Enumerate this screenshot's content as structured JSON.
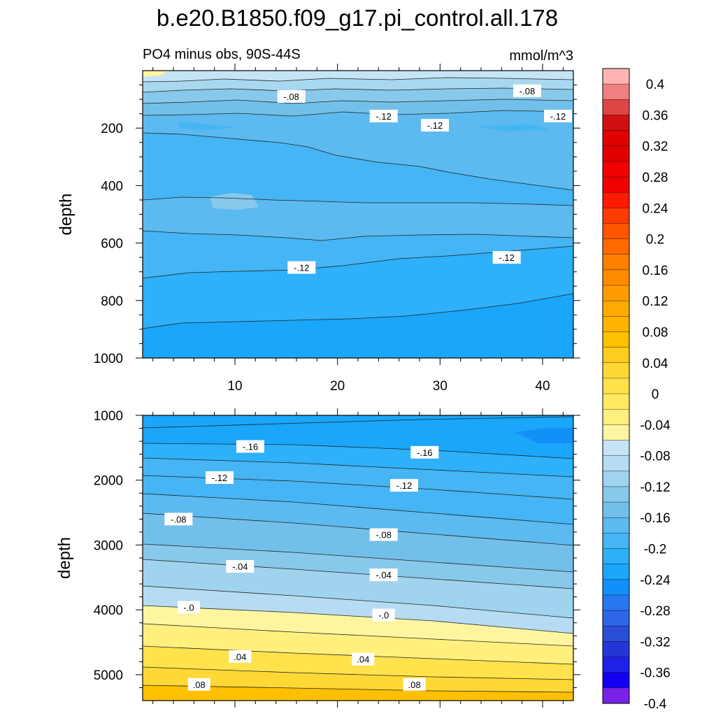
{
  "chart_data": {
    "type": "contour",
    "title": "b.e20.B1850.f09_g17.pi_control.all.178",
    "subtitle_left": "PO4 minus obs, 90S-44S",
    "units": "mmol/m^3",
    "xlim": [
      1,
      43
    ],
    "x_ticks": [
      10,
      20,
      30,
      40
    ],
    "x_tick_labels": [
      "10",
      "20",
      "30",
      "40"
    ],
    "panels": [
      {
        "name": "upper",
        "ylabel": "depth",
        "ylim": [
          0,
          1000
        ],
        "y_ticks": [
          200,
          400,
          600,
          800,
          1000
        ],
        "y_tick_labels": [
          "200",
          "400",
          "600",
          "800",
          "1000"
        ],
        "contour_labels": [
          {
            "text": "-.08",
            "x": 15.5,
            "y": 90
          },
          {
            "text": "-.08",
            "x": 38.5,
            "y": 70
          },
          {
            "text": "-.12",
            "x": 24.5,
            "y": 158
          },
          {
            "text": "-.12",
            "x": 29.5,
            "y": 190
          },
          {
            "text": "-.12",
            "x": 41.5,
            "y": 158
          },
          {
            "text": "-.12",
            "x": 16.5,
            "y": 685
          },
          {
            "text": "-.12",
            "x": 36.5,
            "y": 650
          }
        ]
      },
      {
        "name": "lower",
        "ylabel": "depth",
        "ylim": [
          1000,
          5400
        ],
        "y_ticks": [
          1000,
          2000,
          3000,
          4000,
          5000
        ],
        "y_tick_labels": [
          "1000",
          "2000",
          "3000",
          "4000",
          "5000"
        ],
        "contour_labels": [
          {
            "text": "-.16",
            "x": 11.5,
            "y": 1480
          },
          {
            "text": "-.16",
            "x": 28.5,
            "y": 1570
          },
          {
            "text": "-.12",
            "x": 8.5,
            "y": 1960
          },
          {
            "text": "-.12",
            "x": 26.5,
            "y": 2080
          },
          {
            "text": "-.08",
            "x": 4.5,
            "y": 2600
          },
          {
            "text": "-.08",
            "x": 24.5,
            "y": 2840
          },
          {
            "text": "-.04",
            "x": 10.5,
            "y": 3330
          },
          {
            "text": "-.04",
            "x": 24.5,
            "y": 3460
          },
          {
            "text": "-.0",
            "x": 5.5,
            "y": 3960
          },
          {
            "text": "-.0",
            "x": 24.5,
            "y": 4080
          },
          {
            "text": ".04",
            "x": 10.5,
            "y": 4720
          },
          {
            "text": ".04",
            "x": 22.5,
            "y": 4760
          },
          {
            "text": ".08",
            "x": 6.5,
            "y": 5150
          },
          {
            "text": ".08",
            "x": 27.5,
            "y": 5150
          }
        ]
      }
    ],
    "colorbar": {
      "levels": [
        -0.4,
        -0.38,
        -0.36,
        -0.34,
        -0.32,
        -0.3,
        -0.28,
        -0.26,
        -0.24,
        -0.22,
        -0.2,
        -0.18,
        -0.16,
        -0.14,
        -0.12,
        -0.1,
        -0.08,
        -0.06,
        -0.04,
        -0.02,
        0,
        0.02,
        0.04,
        0.06,
        0.08,
        0.1,
        0.12,
        0.14,
        0.16,
        0.18,
        0.2,
        0.22,
        0.24,
        0.26,
        0.28,
        0.3,
        0.32,
        0.34,
        0.36,
        0.38,
        0.4
      ],
      "labels": [
        "0.4",
        "0.36",
        "0.32",
        "0.28",
        "0.24",
        "0.2",
        "0.16",
        "0.12",
        "0.08",
        "0.04",
        "0",
        "-0.04",
        "-0.08",
        "-0.12",
        "-0.16",
        "-0.2",
        "-0.24",
        "-0.28",
        "-0.32",
        "-0.36",
        "-0.4"
      ],
      "colors": [
        "#ffb3b3",
        "#f08080",
        "#e04545",
        "#d01010",
        "#e00000",
        "#e00000",
        "#f00000",
        "#f00000",
        "#ff1a00",
        "#ff3c00",
        "#ff5500",
        "#ff6a00",
        "#ff7f00",
        "#ff8c00",
        "#ff9c00",
        "#ffaa00",
        "#ffb400",
        "#ffc000",
        "#ffcc20",
        "#ffd836",
        "#ffe24c",
        "#ffea62",
        "#fff07e",
        "#fff5a0",
        "#c5e4f5",
        "#b5dcf2",
        "#a0d3ee",
        "#88c9eb",
        "#72c0ea",
        "#5cbaf0",
        "#45b5f5",
        "#2eb0fa",
        "#1aa6fb",
        "#1290f7",
        "#2877ee",
        "#2d66e6",
        "#2a4fd6",
        "#2536d6",
        "#1f20e8",
        "#1400f0",
        "#7a22e8"
      ]
    }
  }
}
